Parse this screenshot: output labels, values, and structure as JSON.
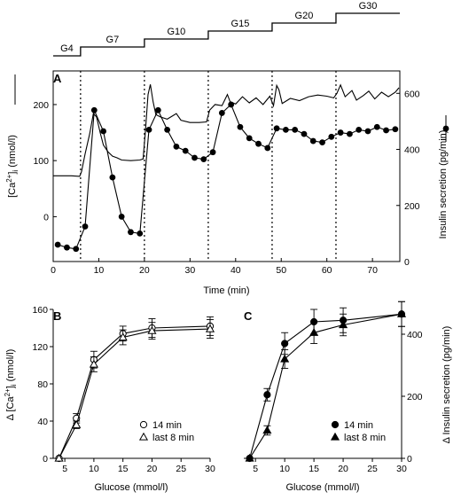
{
  "protocol": {
    "labels": [
      "G4",
      "G7",
      "G10",
      "G15",
      "G20",
      "G30"
    ],
    "boundaries_min": [
      0,
      6,
      20,
      34,
      48,
      62,
      76
    ]
  },
  "chart_data": [
    {
      "panel": "A",
      "type": "line",
      "xlabel": "Time (min)",
      "xlim": [
        0,
        76
      ],
      "xticks": [
        0,
        10,
        20,
        30,
        40,
        50,
        60,
        70
      ],
      "vlines": [
        6,
        20,
        34,
        48,
        62
      ],
      "left_axis": {
        "label": "[Ca2+]i (nmol/l)",
        "ticks": [
          0,
          100,
          200
        ],
        "ylim": [
          -80,
          260
        ]
      },
      "right_axis": {
        "label": "Insulin secretion (pg/min)",
        "ticks": [
          0,
          200,
          400,
          600
        ],
        "ylim": [
          0,
          680
        ]
      },
      "series": [
        {
          "axis": "left",
          "style": "trace",
          "x": [
            0,
            4,
            5.8,
            6.2,
            7,
            8,
            8.8,
            9.5,
            10.3,
            11,
            12,
            13,
            14,
            15,
            17,
            19,
            19.7,
            20.2,
            20.8,
            21.3,
            21.9,
            22.5,
            23.5,
            25,
            27,
            28,
            30,
            32,
            33.6,
            34.3,
            35.5,
            37,
            38.2,
            38.8,
            40,
            41.5,
            43,
            44.5,
            46,
            47.5,
            48.3,
            49,
            49.5,
            50.2,
            52,
            54,
            56,
            58,
            60,
            61.5,
            62.2,
            63,
            64,
            65.5,
            66.5,
            68,
            69.2,
            70.5,
            72,
            73.5,
            75,
            75.8
          ],
          "values": [
            73,
            73,
            72,
            80,
            112,
            148,
            184,
            178,
            150,
            128,
            116,
            108,
            105,
            101,
            100,
            101,
            103,
            150,
            218,
            236,
            205,
            182,
            178,
            174,
            184,
            172,
            168,
            168,
            169,
            190,
            200,
            198,
            218,
            205,
            201,
            214,
            203,
            212,
            200,
            215,
            198,
            234,
            226,
            202,
            211,
            207,
            214,
            217,
            215,
            212,
            220,
            235,
            214,
            225,
            208,
            216,
            224,
            210,
            222,
            214,
            222,
            230
          ]
        },
        {
          "axis": "right",
          "style": "markers",
          "x": [
            1,
            3,
            5,
            7,
            9,
            11,
            13,
            15,
            17,
            19,
            21,
            23,
            25,
            27,
            29,
            31,
            33,
            35,
            37,
            39,
            41,
            43,
            45,
            47,
            49,
            51,
            53,
            55,
            57,
            59,
            61,
            63,
            65,
            67,
            69,
            71,
            73,
            75
          ],
          "values": [
            60,
            50,
            45,
            125,
            540,
            465,
            300,
            160,
            105,
            100,
            470,
            540,
            470,
            410,
            395,
            370,
            365,
            390,
            530,
            560,
            480,
            440,
            420,
            405,
            475,
            470,
            470,
            455,
            430,
            425,
            445,
            460,
            455,
            470,
            465,
            480,
            468,
            472
          ]
        }
      ]
    },
    {
      "panel": "B",
      "type": "line",
      "xlabel": "Glucose (mmol/l)",
      "ylabel": "Δ [Ca2+]i (nmol/l)",
      "xlim": [
        3,
        30
      ],
      "ylim": [
        0,
        160
      ],
      "xticks": [
        5,
        10,
        15,
        20,
        25,
        30
      ],
      "yticks": [
        0,
        40,
        80,
        120,
        160
      ],
      "legend_position": "lower-right",
      "series": [
        {
          "name": "14 min",
          "marker": "circle-open",
          "x": [
            4,
            7,
            10,
            15,
            20,
            30
          ],
          "values": [
            0,
            43,
            106,
            134,
            140,
            142
          ],
          "err": [
            0,
            5,
            9,
            8,
            10,
            10
          ]
        },
        {
          "name": "last 8 min",
          "marker": "triangle-open",
          "x": [
            4,
            7,
            10,
            15,
            20,
            30
          ],
          "values": [
            0,
            36,
            101,
            130,
            137,
            139
          ],
          "err": [
            0,
            4,
            8,
            8,
            9,
            10
          ]
        }
      ]
    },
    {
      "panel": "C",
      "type": "line",
      "xlabel": "Glucose (mmol/l)",
      "ylabel": "Δ Insulin secretion (pg/min)",
      "xlim": [
        3,
        30
      ],
      "ylim": [
        0,
        480
      ],
      "xticks": [
        5,
        10,
        15,
        20,
        25,
        30
      ],
      "yticks": [
        0,
        200,
        400
      ],
      "legend_position": "lower-right",
      "series": [
        {
          "name": "14 min",
          "marker": "circle-filled",
          "x": [
            4,
            7,
            10,
            15,
            20,
            30
          ],
          "values": [
            0,
            205,
            370,
            440,
            445,
            465
          ],
          "err": [
            0,
            20,
            35,
            40,
            40,
            40
          ]
        },
        {
          "name": "last 8 min",
          "marker": "triangle-filled",
          "x": [
            4,
            7,
            10,
            15,
            20,
            30
          ],
          "values": [
            0,
            90,
            320,
            405,
            430,
            465
          ],
          "err": [
            0,
            15,
            30,
            35,
            35,
            40
          ]
        }
      ]
    }
  ]
}
